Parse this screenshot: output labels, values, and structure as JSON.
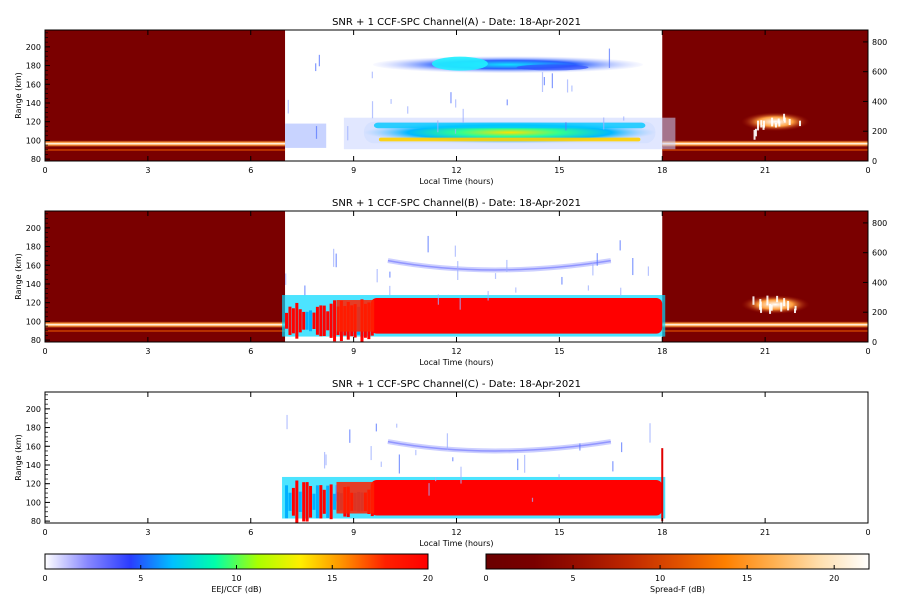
{
  "chart_data": [
    {
      "type": "heatmap",
      "title": "SNR + 1 CCF-SPC Channel(A) - Date: 18-Apr-2021",
      "xlabel": "Local Time (hours)",
      "ylabel": "Range (km)",
      "xlim": [
        0,
        24
      ],
      "ylim": [
        78,
        218
      ],
      "y2lim": [
        0,
        880
      ],
      "xticks": [
        "0",
        "3",
        "6",
        "9",
        "12",
        "15",
        "18",
        "21",
        "0"
      ],
      "yticks": [
        "80",
        "100",
        "120",
        "140",
        "160",
        "180",
        "200"
      ],
      "y2ticks": [
        "0",
        "200",
        "400",
        "600",
        "800"
      ],
      "night_scale": "Spread-F (dB)",
      "day_scale": "EEJ/CCF (dB)",
      "night_windows": [
        [
          0,
          7
        ],
        [
          18,
          24
        ]
      ],
      "features": [
        {
          "name": "night-ionospheric-echo-band",
          "x": [
            0,
            7
          ],
          "range_km": [
            93,
            100
          ],
          "snr_db": 20
        },
        {
          "name": "daytime-eej-echo",
          "x": [
            9.3,
            17.8
          ],
          "range_km": [
            97,
            120
          ],
          "snr_db": 16
        },
        {
          "name": "daytime-150km-echo",
          "x": [
            10,
            17
          ],
          "range_km": [
            172,
            190
          ],
          "snr_db": 6
        },
        {
          "name": "spread-f-plume",
          "x": [
            20.3,
            22.3
          ],
          "range_km": [
            110,
            130
          ],
          "snr_db": 15
        }
      ]
    },
    {
      "type": "heatmap",
      "title": "SNR + 1 CCF-SPC Channel(B) - Date: 18-Apr-2021",
      "xlabel": "Local Time (hours)",
      "ylabel": "Range (km)",
      "xlim": [
        0,
        24
      ],
      "ylim": [
        78,
        218
      ],
      "y2lim": [
        0,
        880
      ],
      "xticks": [
        "0",
        "3",
        "6",
        "9",
        "12",
        "15",
        "18",
        "21",
        "0"
      ],
      "yticks": [
        "80",
        "100",
        "120",
        "140",
        "160",
        "180",
        "200"
      ],
      "y2ticks": [
        "0",
        "200",
        "400",
        "600",
        "800"
      ],
      "night_windows": [
        [
          0,
          7
        ],
        [
          18,
          24
        ]
      ],
      "features": [
        {
          "name": "night-ionospheric-echo-band",
          "x": [
            0,
            7
          ],
          "range_km": [
            93,
            100
          ],
          "snr_db": 20
        },
        {
          "name": "daytime-eej-echo",
          "x": [
            7,
            18
          ],
          "range_km": [
            87,
            125
          ],
          "snr_db": 20
        },
        {
          "name": "daytime-150km-echo",
          "x": [
            10,
            16
          ],
          "range_km": [
            148,
            165
          ],
          "snr_db": 2
        },
        {
          "name": "spread-f-plume",
          "x": [
            20.3,
            22.3
          ],
          "range_km": [
            108,
            128
          ],
          "snr_db": 15
        }
      ]
    },
    {
      "type": "heatmap",
      "title": "SNR + 1 CCF-SPC Channel(C) - Date: 18-Apr-2021",
      "xlabel": "Local Time (hours)",
      "ylabel": "Range (km)",
      "xlim": [
        0,
        24
      ],
      "ylim": [
        78,
        218
      ],
      "xticks": [
        "0",
        "3",
        "6",
        "9",
        "12",
        "15",
        "18",
        "21",
        "0"
      ],
      "yticks": [
        "80",
        "100",
        "120",
        "140",
        "160",
        "180",
        "200"
      ],
      "features": [
        {
          "name": "daytime-eej-echo",
          "x": [
            7,
            18
          ],
          "range_km": [
            86,
            124
          ],
          "snr_db": 20
        },
        {
          "name": "daytime-150km-echo",
          "x": [
            10,
            16
          ],
          "range_km": [
            150,
            165
          ],
          "snr_db": 2
        }
      ]
    }
  ],
  "colorbars": [
    {
      "label": "EEJ/CCF (dB)",
      "ticks": [
        "0",
        "5",
        "10",
        "15",
        "20"
      ],
      "range": [
        0,
        20
      ],
      "colors": [
        "#ffffff",
        "#8888ff",
        "#2a3cff",
        "#00c0ff",
        "#00ffaa",
        "#aaff00",
        "#ffee00",
        "#ff9000",
        "#ff2000",
        "#ff0000"
      ]
    },
    {
      "label": "Spread-F (dB)",
      "ticks": [
        "0",
        "5",
        "10",
        "15",
        "20"
      ],
      "range": [
        0,
        22
      ],
      "colors": [
        "#6a0000",
        "#7a0000",
        "#9a1000",
        "#c02800",
        "#e05000",
        "#ff8000",
        "#ffb050",
        "#ffe0b0",
        "#ffffff"
      ]
    }
  ],
  "colors": {
    "night_background": "#7a0000",
    "eej_core": "#ff0000"
  }
}
